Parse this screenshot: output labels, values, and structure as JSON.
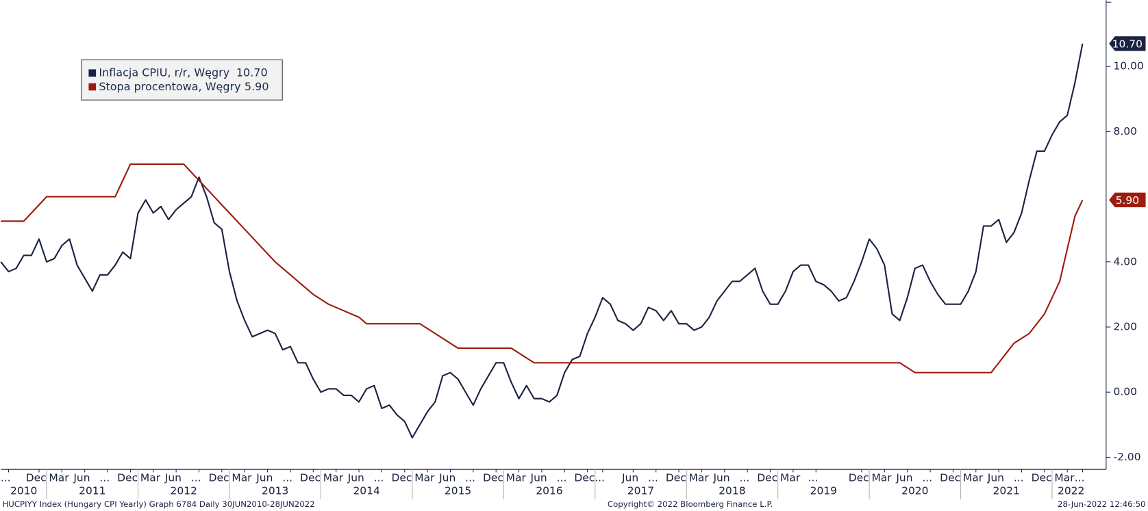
{
  "chart_data": {
    "type": "line",
    "x": [
      "2010-07",
      "2010-08",
      "2010-09",
      "2010-10",
      "2010-11",
      "2010-12",
      "2011-01",
      "2011-02",
      "2011-03",
      "2011-04",
      "2011-05",
      "2011-06",
      "2011-07",
      "2011-08",
      "2011-09",
      "2011-10",
      "2011-11",
      "2011-12",
      "2012-01",
      "2012-02",
      "2012-03",
      "2012-04",
      "2012-05",
      "2012-06",
      "2012-07",
      "2012-08",
      "2012-09",
      "2012-10",
      "2012-11",
      "2012-12",
      "2013-01",
      "2013-02",
      "2013-03",
      "2013-04",
      "2013-05",
      "2013-06",
      "2013-07",
      "2013-08",
      "2013-09",
      "2013-10",
      "2013-11",
      "2013-12",
      "2014-01",
      "2014-02",
      "2014-03",
      "2014-04",
      "2014-05",
      "2014-06",
      "2014-07",
      "2014-08",
      "2014-09",
      "2014-10",
      "2014-11",
      "2014-12",
      "2015-01",
      "2015-02",
      "2015-03",
      "2015-04",
      "2015-05",
      "2015-06",
      "2015-07",
      "2015-08",
      "2015-09",
      "2015-10",
      "2015-11",
      "2015-12",
      "2016-01",
      "2016-02",
      "2016-03",
      "2016-04",
      "2016-05",
      "2016-06",
      "2016-07",
      "2016-08",
      "2016-09",
      "2016-10",
      "2016-11",
      "2016-12",
      "2017-01",
      "2017-02",
      "2017-03",
      "2017-04",
      "2017-05",
      "2017-06",
      "2017-07",
      "2017-08",
      "2017-09",
      "2017-10",
      "2017-11",
      "2017-12",
      "2018-01",
      "2018-02",
      "2018-03",
      "2018-04",
      "2018-05",
      "2018-06",
      "2018-07",
      "2018-08",
      "2018-09",
      "2018-10",
      "2018-11",
      "2018-12",
      "2019-01",
      "2019-02",
      "2019-03",
      "2019-04",
      "2019-05",
      "2019-06",
      "2019-07",
      "2019-08",
      "2019-09",
      "2019-10",
      "2019-11",
      "2019-12",
      "2020-01",
      "2020-02",
      "2020-03",
      "2020-04",
      "2020-05",
      "2020-06",
      "2020-07",
      "2020-08",
      "2020-09",
      "2020-10",
      "2020-11",
      "2020-12",
      "2021-01",
      "2021-02",
      "2021-03",
      "2021-04",
      "2021-05",
      "2021-06",
      "2021-07",
      "2021-08",
      "2021-09",
      "2021-10",
      "2021-11",
      "2021-12",
      "2022-01",
      "2022-02",
      "2022-03",
      "2022-04",
      "2022-05"
    ],
    "series": [
      {
        "name": "Inflacja CPIU, r/r, Węgry",
        "color": "#1b2340",
        "values": [
          4.0,
          3.7,
          3.8,
          4.2,
          4.2,
          4.7,
          4.0,
          4.1,
          4.5,
          4.7,
          3.9,
          3.5,
          3.1,
          3.6,
          3.6,
          3.9,
          4.3,
          4.1,
          5.5,
          5.9,
          5.5,
          5.7,
          5.3,
          5.6,
          5.8,
          6.0,
          6.6,
          6.0,
          5.2,
          5.0,
          3.7,
          2.8,
          2.2,
          1.7,
          1.8,
          1.9,
          1.8,
          1.3,
          1.4,
          0.9,
          0.9,
          0.4,
          0.0,
          0.1,
          0.1,
          -0.1,
          -0.1,
          -0.3,
          0.1,
          0.2,
          -0.5,
          -0.4,
          -0.7,
          -0.9,
          -1.4,
          -1.0,
          -0.6,
          -0.3,
          0.5,
          0.6,
          0.4,
          0.0,
          -0.4,
          0.1,
          0.5,
          0.9,
          0.9,
          0.3,
          -0.2,
          0.2,
          -0.2,
          -0.2,
          -0.3,
          -0.1,
          0.6,
          1.0,
          1.1,
          1.8,
          2.3,
          2.9,
          2.7,
          2.2,
          2.1,
          1.9,
          2.1,
          2.6,
          2.5,
          2.2,
          2.5,
          2.1,
          2.1,
          1.9,
          2.0,
          2.3,
          2.8,
          3.1,
          3.4,
          3.4,
          3.6,
          3.8,
          3.1,
          2.7,
          2.7,
          3.1,
          3.7,
          3.9,
          3.9,
          3.4,
          3.3,
          3.1,
          2.8,
          2.9,
          3.4,
          4.0,
          4.7,
          4.4,
          3.9,
          2.4,
          2.2,
          2.9,
          3.8,
          3.9,
          3.4,
          3.0,
          2.7,
          2.7,
          2.7,
          3.1,
          3.7,
          5.1,
          5.1,
          5.3,
          4.6,
          4.9,
          5.5,
          6.5,
          7.4,
          7.4,
          7.9,
          8.3,
          8.5,
          9.5,
          10.7
        ],
        "value_labels": [
          null,
          null,
          null,
          null,
          null,
          null,
          null,
          null,
          null,
          null,
          null,
          null,
          null,
          null,
          null,
          null,
          null,
          null,
          null,
          null,
          null,
          null,
          null,
          null,
          null,
          null,
          null,
          null,
          null,
          null,
          null,
          null,
          null,
          null,
          null,
          null,
          null,
          null,
          null,
          null,
          null,
          null,
          null,
          null,
          null,
          null,
          null,
          null,
          null,
          null,
          null,
          null,
          null,
          null,
          null,
          null,
          null,
          null,
          null,
          null,
          null,
          null,
          null,
          null,
          null,
          null,
          null,
          null,
          null,
          null,
          null,
          null,
          null,
          null,
          null,
          null,
          null,
          null,
          null,
          null,
          null,
          null,
          null,
          null,
          null,
          null,
          null,
          null,
          null,
          null,
          null,
          null,
          null,
          null,
          null,
          null,
          null,
          null,
          null,
          null,
          null,
          null,
          null,
          null,
          null,
          null,
          null,
          null,
          null,
          null,
          null,
          null,
          null,
          null,
          null,
          null,
          null,
          null,
          null,
          null,
          null,
          null,
          null,
          null,
          null,
          null,
          null,
          null,
          null,
          null,
          null,
          null,
          null,
          null,
          null,
          null,
          null,
          null,
          null,
          null,
          null,
          null,
          "10.70"
        ]
      },
      {
        "name": "Stopa procentowa, Węgry",
        "color": "#9b1c10",
        "values": [
          5.25,
          5.25,
          5.25,
          5.25,
          5.5,
          5.75,
          6.0,
          6.0,
          6.0,
          6.0,
          6.0,
          6.0,
          6.0,
          6.0,
          6.0,
          6.0,
          6.5,
          7.0,
          7.0,
          7.0,
          7.0,
          7.0,
          7.0,
          7.0,
          7.0,
          6.75,
          6.5,
          6.25,
          6.0,
          5.75,
          5.5,
          5.25,
          5.0,
          4.75,
          4.5,
          4.25,
          4.0,
          3.8,
          3.6,
          3.4,
          3.2,
          3.0,
          2.85,
          2.7,
          2.6,
          2.5,
          2.4,
          2.3,
          2.1,
          2.1,
          2.1,
          2.1,
          2.1,
          2.1,
          2.1,
          2.1,
          1.95,
          1.8,
          1.65,
          1.5,
          1.35,
          1.35,
          1.35,
          1.35,
          1.35,
          1.35,
          1.35,
          1.35,
          1.2,
          1.05,
          0.9,
          0.9,
          0.9,
          0.9,
          0.9,
          0.9,
          0.9,
          0.9,
          0.9,
          0.9,
          0.9,
          0.9,
          0.9,
          0.9,
          0.9,
          0.9,
          0.9,
          0.9,
          0.9,
          0.9,
          0.9,
          0.9,
          0.9,
          0.9,
          0.9,
          0.9,
          0.9,
          0.9,
          0.9,
          0.9,
          0.9,
          0.9,
          0.9,
          0.9,
          0.9,
          0.9,
          0.9,
          0.9,
          0.9,
          0.9,
          0.9,
          0.9,
          0.9,
          0.9,
          0.9,
          0.9,
          0.9,
          0.9,
          0.9,
          0.75,
          0.6,
          0.6,
          0.6,
          0.6,
          0.6,
          0.6,
          0.6,
          0.6,
          0.6,
          0.6,
          0.6,
          0.9,
          1.2,
          1.5,
          1.65,
          1.8,
          2.1,
          2.4,
          2.9,
          3.4,
          4.4,
          5.4,
          5.9
        ],
        "value_labels": [
          null,
          null,
          null,
          null,
          null,
          null,
          null,
          null,
          null,
          null,
          null,
          null,
          null,
          null,
          null,
          null,
          null,
          null,
          null,
          null,
          null,
          null,
          null,
          null,
          null,
          null,
          null,
          null,
          null,
          null,
          null,
          null,
          null,
          null,
          null,
          null,
          null,
          null,
          null,
          null,
          null,
          null,
          null,
          null,
          null,
          null,
          null,
          null,
          null,
          null,
          null,
          null,
          null,
          null,
          null,
          null,
          null,
          null,
          null,
          null,
          null,
          null,
          null,
          null,
          null,
          null,
          null,
          null,
          null,
          null,
          null,
          null,
          null,
          null,
          null,
          null,
          null,
          null,
          null,
          null,
          null,
          null,
          null,
          null,
          null,
          null,
          null,
          null,
          null,
          null,
          null,
          null,
          null,
          null,
          null,
          null,
          null,
          null,
          null,
          null,
          null,
          null,
          null,
          null,
          null,
          null,
          null,
          null,
          null,
          null,
          null,
          null,
          null,
          null,
          null,
          null,
          null,
          null,
          null,
          null,
          null,
          null,
          null,
          null,
          null,
          null,
          null,
          null,
          null,
          null,
          null,
          null,
          null,
          null,
          null,
          null,
          null,
          null,
          null,
          null,
          null,
          null,
          "5.90"
        ]
      }
    ],
    "xlim": [
      "2010-07",
      "2022-08"
    ],
    "xticks": [
      {
        "value": "2010-08",
        "label": "..."
      },
      {
        "value": "2010-12",
        "label": "Dec"
      },
      {
        "value": "2011-03",
        "label": "Mar"
      },
      {
        "value": "2011-06",
        "label": "Jun"
      },
      {
        "value": "2011-09",
        "label": "..."
      },
      {
        "value": "2011-12",
        "label": "Dec"
      },
      {
        "value": "2012-03",
        "label": "Mar"
      },
      {
        "value": "2012-06",
        "label": "Jun"
      },
      {
        "value": "2012-09",
        "label": "..."
      },
      {
        "value": "2012-12",
        "label": "Dec"
      },
      {
        "value": "2013-03",
        "label": "Mar"
      },
      {
        "value": "2013-06",
        "label": "Jun"
      },
      {
        "value": "2013-09",
        "label": "..."
      },
      {
        "value": "2013-12",
        "label": "Dec"
      },
      {
        "value": "2014-03",
        "label": "Mar"
      },
      {
        "value": "2014-06",
        "label": "Jun"
      },
      {
        "value": "2014-09",
        "label": "..."
      },
      {
        "value": "2014-12",
        "label": "Dec"
      },
      {
        "value": "2015-03",
        "label": "Mar"
      },
      {
        "value": "2015-06",
        "label": "Jun"
      },
      {
        "value": "2015-09",
        "label": "..."
      },
      {
        "value": "2015-12",
        "label": "Dec"
      },
      {
        "value": "2016-03",
        "label": "Mar"
      },
      {
        "value": "2016-06",
        "label": "Jun"
      },
      {
        "value": "2016-09",
        "label": "..."
      },
      {
        "value": "2016-12",
        "label": "Dec"
      },
      {
        "value": "2017-02",
        "label": "..."
      },
      {
        "value": "2017-06",
        "label": "Jun"
      },
      {
        "value": "2017-09",
        "label": "..."
      },
      {
        "value": "2017-12",
        "label": "Dec"
      },
      {
        "value": "2018-03",
        "label": "Mar"
      },
      {
        "value": "2018-06",
        "label": "Jun"
      },
      {
        "value": "2018-09",
        "label": "..."
      },
      {
        "value": "2018-12",
        "label": "Dec"
      },
      {
        "value": "2019-03",
        "label": "Mar"
      },
      {
        "value": "2019-06",
        "label": "..."
      },
      {
        "value": "2019-12",
        "label": "Dec"
      },
      {
        "value": "2020-03",
        "label": "Mar"
      },
      {
        "value": "2020-06",
        "label": "Jun"
      },
      {
        "value": "2020-09",
        "label": "..."
      },
      {
        "value": "2020-12",
        "label": "Dec"
      },
      {
        "value": "2021-03",
        "label": "Mar"
      },
      {
        "value": "2021-06",
        "label": "Jun"
      },
      {
        "value": "2021-09",
        "label": "..."
      },
      {
        "value": "2021-12",
        "label": "Dec"
      },
      {
        "value": "2022-03",
        "label": "Mar"
      },
      {
        "value": "2022-05",
        "label": "..."
      }
    ],
    "x_years": [
      2010,
      2011,
      2012,
      2013,
      2014,
      2015,
      2016,
      2017,
      2018,
      2019,
      2020,
      2021,
      2022
    ],
    "ylim": [
      -2.35,
      12.04
    ],
    "yticks": [
      {
        "value": -2,
        "label": "-2.00"
      },
      {
        "value": 0,
        "label": "0.00"
      },
      {
        "value": 2,
        "label": "2.00"
      },
      {
        "value": 4,
        "label": "4.00"
      },
      {
        "value": 8,
        "label": "8.00"
      },
      {
        "value": 10,
        "label": "10.00"
      }
    ],
    "y_axis_side": "right",
    "grid": false,
    "legend_position": "upper-left",
    "source": "HUCPIYY Index (Hungary CPI Yearly) Graph 6784  Daily 30JUN2010-28JUN2022",
    "copyright": "Copyright© 2022 Bloomberg Finance L.P.",
    "timestamp": "28-Jun-2022 12:46:50"
  }
}
